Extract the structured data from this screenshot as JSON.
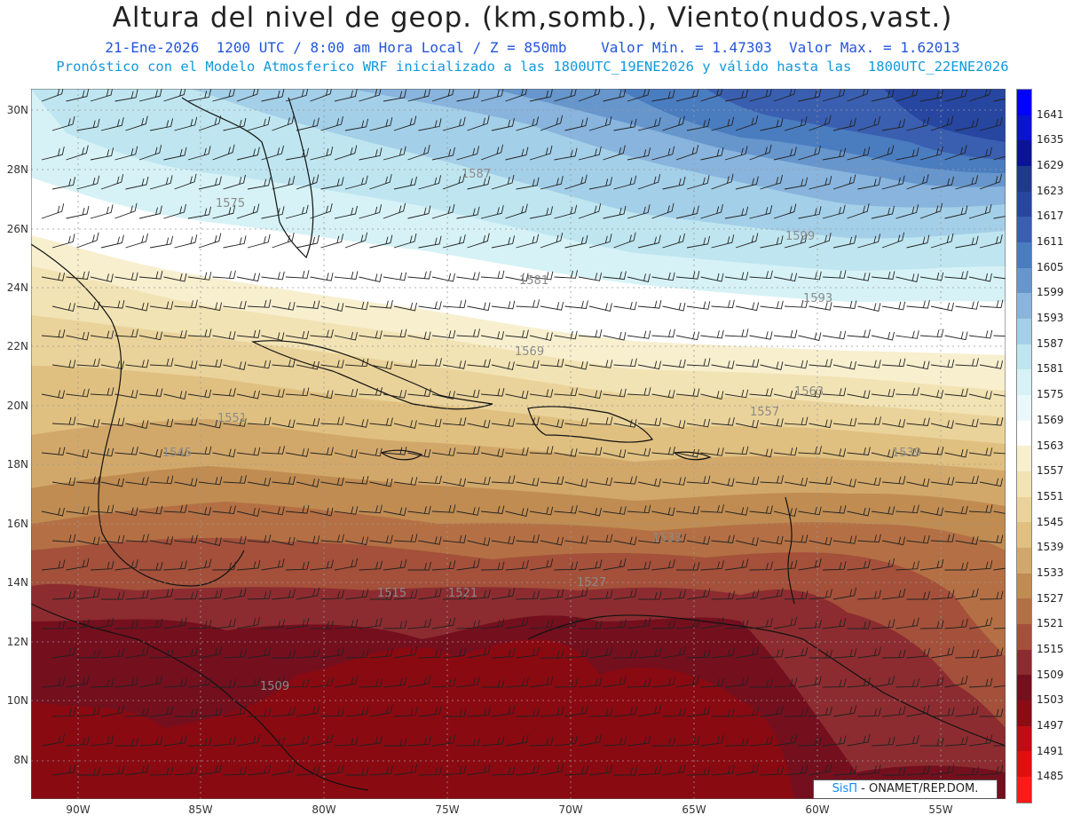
{
  "header": {
    "title": "Altura del nivel de geop. (km,somb.), Viento(nudos,vast.)",
    "line1": "21-Ene-2026  1200 UTC / 8:00 am Hora Local / Z = 850mb    Valor Min. = 1.47303  Valor Max. = 1.62013",
    "line2": "Pronóstico con el Modelo Atmosferico WRF inicializado a las 1800UTC_19ENE2026 y válido hasta las  1800UTC_22ENE2026"
  },
  "axes": {
    "lat_labels": [
      "30N",
      "28N",
      "26N",
      "24N",
      "22N",
      "20N",
      "18N",
      "16N",
      "14N",
      "12N",
      "10N",
      "8N"
    ],
    "lon_labels": [
      "90W",
      "85W",
      "80W",
      "75W",
      "70W",
      "65W",
      "60W",
      "55W"
    ]
  },
  "colorbar": {
    "labels": [
      "1641",
      "1635",
      "1629",
      "1623",
      "1617",
      "1611",
      "1605",
      "1599",
      "1593",
      "1587",
      "1581",
      "1575",
      "1569",
      "1563",
      "1557",
      "1551",
      "1545",
      "1539",
      "1533",
      "1527",
      "1521",
      "1515",
      "1509",
      "1503",
      "1497",
      "1491",
      "1485"
    ],
    "colors": [
      "#0000ff",
      "#0a14cc",
      "#0b1496",
      "#1e3a8a",
      "#2646a0",
      "#3a5fb0",
      "#4a7cc0",
      "#6796cc",
      "#88b4dd",
      "#a4cfe8",
      "#bfe6f0",
      "#d6f2f6",
      "#eaf8fb",
      "#ffffff",
      "#f8efcf",
      "#f2e3b4",
      "#ead39a",
      "#e0c080",
      "#d2a86a",
      "#c08c52",
      "#b47044",
      "#a4503a",
      "#8c2c30",
      "#740f1e",
      "#8c0c14",
      "#c00c14",
      "#e01010",
      "#ff1a1a"
    ]
  },
  "contour_labels": [
    "1587",
    "1575",
    "1569",
    "1563",
    "1557",
    "1551",
    "1545",
    "1539",
    "1533",
    "1527",
    "1521",
    "1515",
    "1509",
    "1581",
    "1599",
    "1593"
  ],
  "credit": {
    "brand": "SisΠ",
    "text": " - ONAMET/REP.DOM."
  }
}
